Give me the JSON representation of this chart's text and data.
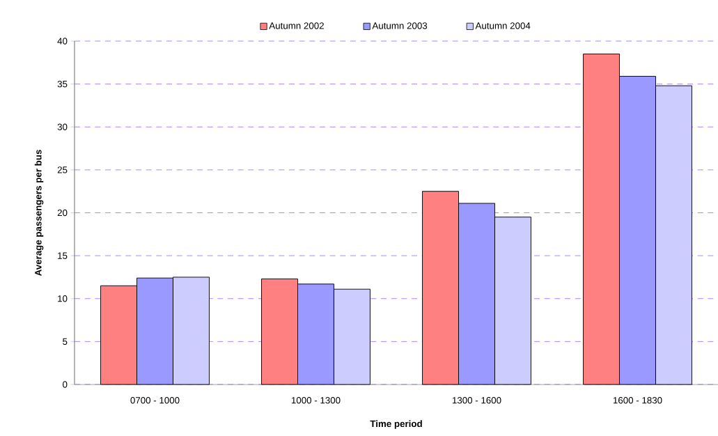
{
  "chart_data": {
    "type": "bar",
    "xlabel": "Time period",
    "ylabel": "Average passengers per bus",
    "categories": [
      "0700 - 1000",
      "1000 - 1300",
      "1300 - 1600",
      "1600 - 1830"
    ],
    "series": [
      {
        "name": "Autumn 2002",
        "color": "#ff8080",
        "values": [
          11.5,
          12.3,
          22.5,
          38.5
        ]
      },
      {
        "name": "Autumn 2003",
        "color": "#9999ff",
        "values": [
          12.4,
          11.7,
          21.1,
          35.9
        ]
      },
      {
        "name": "Autumn 2004",
        "color": "#ccccff",
        "values": [
          12.5,
          11.1,
          19.5,
          34.8
        ]
      }
    ],
    "ylim": [
      0,
      40
    ],
    "yticks": [
      0,
      5,
      10,
      15,
      20,
      25,
      30,
      35,
      40
    ],
    "grid": "y",
    "legend": "top"
  }
}
